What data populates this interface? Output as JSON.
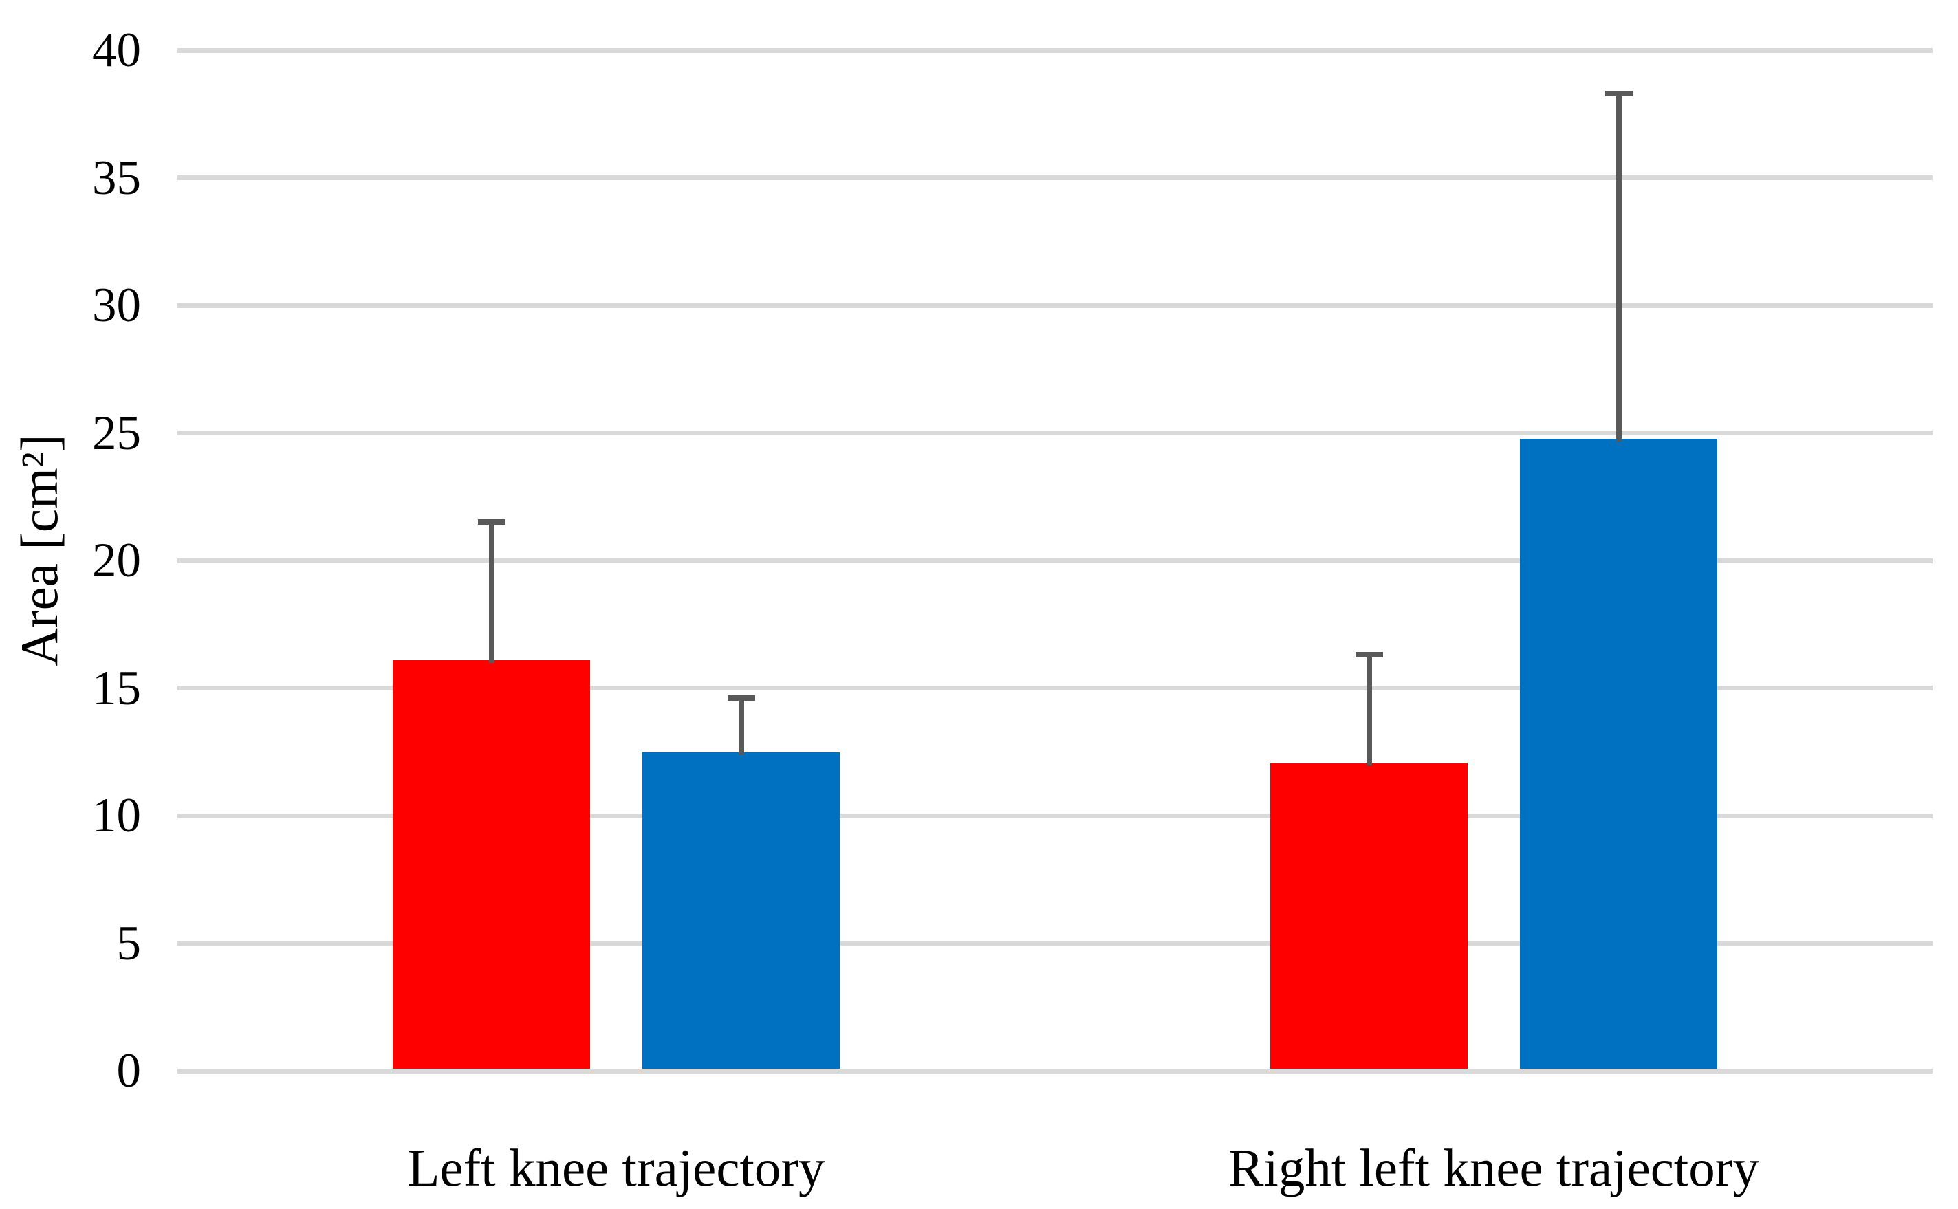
{
  "chart_data": {
    "type": "bar",
    "title": "",
    "ylabel": "Area [cm²]",
    "xlabel": "",
    "categories": [
      "Left knee trajectory",
      "Right left knee trajectory"
    ],
    "series": [
      {
        "name": "red",
        "color": "#FF0000",
        "values": [
          16.0,
          12.0
        ],
        "error_plus": [
          5.5,
          4.3
        ]
      },
      {
        "name": "blue",
        "color": "#0070C0",
        "values": [
          12.4,
          24.7
        ],
        "error_plus": [
          2.2,
          13.6
        ]
      }
    ],
    "ylim": [
      0,
      40
    ],
    "yticks": [
      0,
      5,
      10,
      15,
      20,
      25,
      30,
      35,
      40
    ],
    "grid": true,
    "legend": "none",
    "colors": {
      "gridline": "#D9D9D9",
      "error_bar": "#595959",
      "text": "#000000",
      "background": "#FFFFFF"
    }
  }
}
